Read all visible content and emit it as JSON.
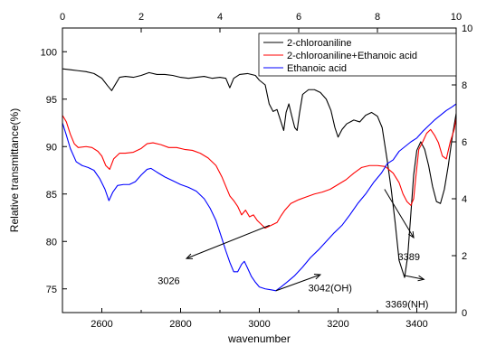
{
  "chart_data": {
    "type": "line",
    "xlabel": "wavenumber",
    "ylabel": "Relative transmittance(%)",
    "xlim": [
      2500,
      3500
    ],
    "ylim": [
      72.5,
      102.5
    ],
    "x_ticks": [
      2600,
      2800,
      3000,
      3200,
      3400
    ],
    "y_ticks": [
      75,
      80,
      85,
      90,
      95,
      100
    ],
    "top_axis": {
      "range": [
        0,
        10
      ],
      "ticks": [
        "0",
        "2",
        "4",
        "6",
        "8",
        "10"
      ]
    },
    "right_axis": {
      "range": [
        0,
        10
      ],
      "ticks": [
        "0",
        "2",
        "4",
        "6",
        "8",
        "10"
      ]
    },
    "legend": {
      "placement": "top-right"
    },
    "grid": false,
    "series": [
      {
        "name": "2-chloroaniline",
        "color": "#000000",
        "points": [
          [
            2500,
            98.2
          ],
          [
            2520,
            98.1
          ],
          [
            2540,
            98.0
          ],
          [
            2560,
            97.9
          ],
          [
            2580,
            97.7
          ],
          [
            2600,
            97.2
          ],
          [
            2615,
            96.4
          ],
          [
            2625,
            95.9
          ],
          [
            2635,
            96.6
          ],
          [
            2645,
            97.3
          ],
          [
            2660,
            97.4
          ],
          [
            2680,
            97.3
          ],
          [
            2700,
            97.5
          ],
          [
            2720,
            97.8
          ],
          [
            2740,
            97.6
          ],
          [
            2760,
            97.6
          ],
          [
            2780,
            97.5
          ],
          [
            2800,
            97.3
          ],
          [
            2820,
            97.2
          ],
          [
            2840,
            97.3
          ],
          [
            2860,
            97.4
          ],
          [
            2880,
            97.2
          ],
          [
            2900,
            97.3
          ],
          [
            2915,
            97.2
          ],
          [
            2925,
            96.2
          ],
          [
            2935,
            97.2
          ],
          [
            2950,
            97.6
          ],
          [
            2970,
            97.7
          ],
          [
            2990,
            97.5
          ],
          [
            3000,
            97.0
          ],
          [
            3015,
            96.5
          ],
          [
            3025,
            94.5
          ],
          [
            3035,
            93.7
          ],
          [
            3045,
            93.9
          ],
          [
            3055,
            92.6
          ],
          [
            3062,
            91.7
          ],
          [
            3068,
            93.6
          ],
          [
            3075,
            94.5
          ],
          [
            3082,
            93.3
          ],
          [
            3090,
            92.0
          ],
          [
            3096,
            91.7
          ],
          [
            3102,
            93.5
          ],
          [
            3110,
            95.5
          ],
          [
            3125,
            96.0
          ],
          [
            3140,
            96.0
          ],
          [
            3155,
            95.7
          ],
          [
            3170,
            95.0
          ],
          [
            3182,
            93.8
          ],
          [
            3192,
            92.0
          ],
          [
            3200,
            91.0
          ],
          [
            3210,
            91.8
          ],
          [
            3222,
            92.4
          ],
          [
            3240,
            92.8
          ],
          [
            3255,
            92.6
          ],
          [
            3270,
            93.3
          ],
          [
            3285,
            93.6
          ],
          [
            3300,
            93.2
          ],
          [
            3312,
            92.0
          ],
          [
            3325,
            88.5
          ],
          [
            3335,
            85.5
          ],
          [
            3345,
            82.0
          ],
          [
            3355,
            78.0
          ],
          [
            3362,
            77.1
          ],
          [
            3369,
            76.2
          ],
          [
            3377,
            78.5
          ],
          [
            3385,
            83.0
          ],
          [
            3392,
            87.0
          ],
          [
            3400,
            89.6
          ],
          [
            3410,
            90.5
          ],
          [
            3420,
            89.7
          ],
          [
            3430,
            88.0
          ],
          [
            3440,
            85.8
          ],
          [
            3450,
            84.2
          ],
          [
            3460,
            84.0
          ],
          [
            3470,
            85.5
          ],
          [
            3480,
            88.0
          ],
          [
            3490,
            91.0
          ],
          [
            3500,
            93.5
          ]
        ]
      },
      {
        "name": "2-chloroaniline+Ethanoic acid",
        "color": "#ff0000",
        "points": [
          [
            2500,
            93.3
          ],
          [
            2510,
            92.6
          ],
          [
            2520,
            91.3
          ],
          [
            2530,
            90.3
          ],
          [
            2540,
            89.9
          ],
          [
            2560,
            90.0
          ],
          [
            2575,
            89.9
          ],
          [
            2590,
            89.5
          ],
          [
            2600,
            89.0
          ],
          [
            2610,
            88.0
          ],
          [
            2620,
            87.6
          ],
          [
            2630,
            88.7
          ],
          [
            2645,
            89.3
          ],
          [
            2660,
            89.3
          ],
          [
            2680,
            89.4
          ],
          [
            2700,
            89.8
          ],
          [
            2715,
            90.3
          ],
          [
            2730,
            90.4
          ],
          [
            2750,
            90.2
          ],
          [
            2770,
            89.9
          ],
          [
            2790,
            89.9
          ],
          [
            2810,
            89.7
          ],
          [
            2830,
            89.6
          ],
          [
            2850,
            89.3
          ],
          [
            2870,
            88.8
          ],
          [
            2890,
            88.0
          ],
          [
            2905,
            86.8
          ],
          [
            2915,
            85.8
          ],
          [
            2925,
            84.8
          ],
          [
            2935,
            84.3
          ],
          [
            2945,
            83.7
          ],
          [
            2955,
            82.8
          ],
          [
            2965,
            83.3
          ],
          [
            2975,
            82.6
          ],
          [
            2985,
            82.8
          ],
          [
            2995,
            82.2
          ],
          [
            3005,
            81.8
          ],
          [
            3015,
            81.4
          ],
          [
            3025,
            81.6
          ],
          [
            3035,
            81.8
          ],
          [
            3045,
            82.0
          ],
          [
            3055,
            82.7
          ],
          [
            3065,
            83.3
          ],
          [
            3080,
            84.0
          ],
          [
            3100,
            84.4
          ],
          [
            3120,
            84.7
          ],
          [
            3140,
            85.0
          ],
          [
            3160,
            85.2
          ],
          [
            3180,
            85.5
          ],
          [
            3200,
            86.0
          ],
          [
            3220,
            86.5
          ],
          [
            3240,
            87.2
          ],
          [
            3260,
            87.8
          ],
          [
            3280,
            88.0
          ],
          [
            3300,
            88.0
          ],
          [
            3320,
            87.9
          ],
          [
            3340,
            87.2
          ],
          [
            3355,
            86.2
          ],
          [
            3365,
            85.0
          ],
          [
            3375,
            84.2
          ],
          [
            3385,
            83.8
          ],
          [
            3392,
            84.5
          ],
          [
            3398,
            87.0
          ],
          [
            3405,
            89.7
          ],
          [
            3415,
            90.5
          ],
          [
            3425,
            91.4
          ],
          [
            3435,
            91.8
          ],
          [
            3445,
            91.2
          ],
          [
            3455,
            90.4
          ],
          [
            3465,
            89.0
          ],
          [
            3475,
            88.7
          ],
          [
            3485,
            90.5
          ],
          [
            3495,
            91.8
          ],
          [
            3500,
            93.0
          ]
        ]
      },
      {
        "name": "Ethanoic acid",
        "color": "#0000ff",
        "points": [
          [
            2500,
            92.5
          ],
          [
            2510,
            91.2
          ],
          [
            2520,
            89.8
          ],
          [
            2535,
            88.4
          ],
          [
            2550,
            88.0
          ],
          [
            2565,
            87.8
          ],
          [
            2580,
            87.5
          ],
          [
            2595,
            86.6
          ],
          [
            2608,
            85.5
          ],
          [
            2618,
            84.3
          ],
          [
            2628,
            85.2
          ],
          [
            2640,
            85.9
          ],
          [
            2655,
            86.0
          ],
          [
            2670,
            86.0
          ],
          [
            2685,
            86.3
          ],
          [
            2700,
            87.0
          ],
          [
            2715,
            87.6
          ],
          [
            2725,
            87.7
          ],
          [
            2740,
            87.3
          ],
          [
            2760,
            86.8
          ],
          [
            2780,
            86.4
          ],
          [
            2800,
            86.0
          ],
          [
            2820,
            85.7
          ],
          [
            2840,
            85.3
          ],
          [
            2860,
            84.5
          ],
          [
            2875,
            83.5
          ],
          [
            2890,
            82.2
          ],
          [
            2905,
            80.3
          ],
          [
            2915,
            79.0
          ],
          [
            2925,
            77.8
          ],
          [
            2935,
            76.8
          ],
          [
            2945,
            76.8
          ],
          [
            2955,
            77.6
          ],
          [
            2962,
            77.9
          ],
          [
            2970,
            77.2
          ],
          [
            2980,
            76.3
          ],
          [
            2990,
            75.7
          ],
          [
            3000,
            75.2
          ],
          [
            3015,
            75.0
          ],
          [
            3030,
            74.9
          ],
          [
            3042,
            74.8
          ],
          [
            3055,
            75.2
          ],
          [
            3070,
            75.7
          ],
          [
            3090,
            76.4
          ],
          [
            3110,
            77.3
          ],
          [
            3130,
            78.3
          ],
          [
            3150,
            79.1
          ],
          [
            3170,
            80.0
          ],
          [
            3190,
            80.9
          ],
          [
            3210,
            81.7
          ],
          [
            3230,
            82.8
          ],
          [
            3250,
            84.0
          ],
          [
            3270,
            85.0
          ],
          [
            3290,
            86.2
          ],
          [
            3310,
            87.2
          ],
          [
            3325,
            88.2
          ],
          [
            3340,
            88.6
          ],
          [
            3355,
            89.5
          ],
          [
            3370,
            90.0
          ],
          [
            3385,
            90.5
          ],
          [
            3400,
            90.9
          ],
          [
            3415,
            91.6
          ],
          [
            3430,
            92.2
          ],
          [
            3445,
            92.8
          ],
          [
            3460,
            93.3
          ],
          [
            3475,
            93.8
          ],
          [
            3490,
            94.2
          ],
          [
            3500,
            94.5
          ]
        ]
      }
    ],
    "annotations": [
      {
        "text": "3026",
        "from": [
          3026,
          81.7
        ],
        "to": [
          2815,
          78.2
        ],
        "label_at": [
          2770,
          75.9
        ]
      },
      {
        "text": "3042(OH)",
        "from": [
          3042,
          74.8
        ],
        "to": [
          3155,
          76.5
        ],
        "label_at": [
          3180,
          75.1
        ]
      },
      {
        "text": "3369(NH)",
        "from": [
          3369,
          76.4
        ],
        "to": [
          3418,
          76.0
        ],
        "label_at": [
          3375,
          73.4
        ]
      },
      {
        "text": "3389",
        "from": [
          3318,
          85.5
        ],
        "to": [
          3392,
          80.4
        ],
        "label_at": [
          3380,
          78.4
        ]
      }
    ]
  }
}
